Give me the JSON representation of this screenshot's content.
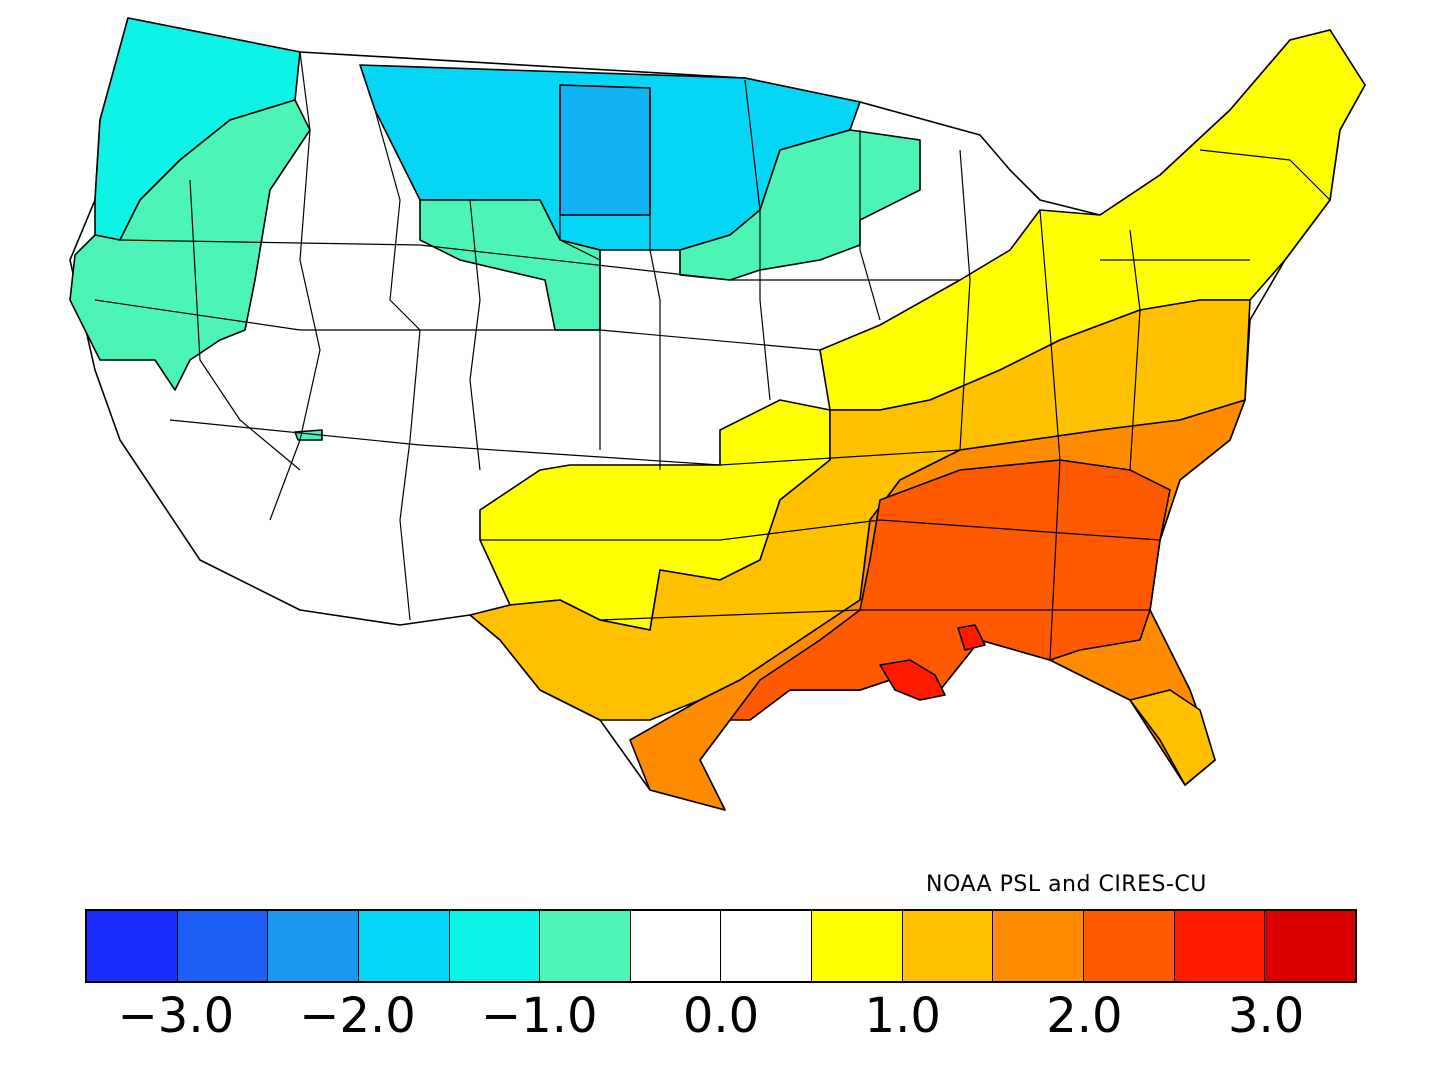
{
  "map": {
    "credit": "NOAA PSL and CIRES-CU",
    "legend": {
      "colors": [
        "#1a2cff",
        "#1f5ef5",
        "#1b97f0",
        "#06d6f6",
        "#0ff2e6",
        "#4cf5b6",
        "#ffffff",
        "#ffffff",
        "#ffff00",
        "#ffc000",
        "#ff8c00",
        "#ff5a00",
        "#ff1a00",
        "#d80000"
      ],
      "tick_labels": [
        "−3.0",
        "−2.0",
        "−1.0",
        "0.0",
        "1.0",
        "2.0",
        "3.0"
      ],
      "tick_values": [
        -3.0,
        -2.0,
        -1.0,
        0.0,
        1.0,
        2.0,
        3.0
      ],
      "range": [
        -3.5,
        3.5
      ]
    },
    "regions": [
      {
        "name": "pacific-northwest",
        "category": "-1.5"
      },
      {
        "name": "northern-plains",
        "category": "-1.5 to -2.0"
      },
      {
        "name": "upper-midwest",
        "category": "-1.0"
      },
      {
        "name": "california-great-basin",
        "category": "0.0"
      },
      {
        "name": "ohio-valley",
        "category": "1.0"
      },
      {
        "name": "southern-plains",
        "category": "1.0 to 1.5"
      },
      {
        "name": "southeast",
        "category": "2.0 to 2.5"
      },
      {
        "name": "gulf-coast",
        "category": "2.5"
      },
      {
        "name": "northeast",
        "category": "1.0"
      }
    ]
  }
}
